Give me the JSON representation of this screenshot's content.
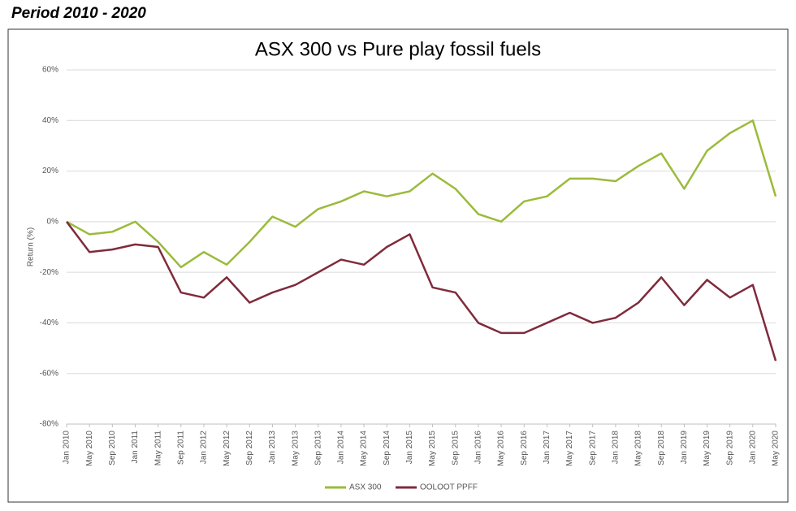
{
  "header": {
    "title": "Period 2010 - 2020"
  },
  "chart_data": {
    "type": "line",
    "title": "ASX 300 vs Pure play fossil fuels",
    "y_label": "Return (%)",
    "categories": [
      "Jan 2010",
      "May 2010",
      "Sep 2010",
      "Jan 2011",
      "May 2011",
      "Sep 2011",
      "Jan 2012",
      "May 2012",
      "Sep 2012",
      "Jan 2013",
      "May 2013",
      "Sep 2013",
      "Jan 2014",
      "May 2014",
      "Sep 2014",
      "Jan 2015",
      "May 2015",
      "Sep 2015",
      "Jan 2016",
      "May 2016",
      "Sep 2016",
      "Jan 2017",
      "May 2017",
      "Sep 2017",
      "Jan 2018",
      "May 2018",
      "Sep 2018",
      "Jan 2019",
      "May 2019",
      "Sep 2019",
      "Jan 2020",
      "May 2020"
    ],
    "series": [
      {
        "name": "ASX 300",
        "color": "#9bbb3b",
        "values": [
          0,
          -5,
          -4,
          0,
          -8,
          -18,
          -12,
          -17,
          -8,
          2,
          -2,
          5,
          8,
          12,
          10,
          12,
          19,
          13,
          3,
          0,
          8,
          10,
          17,
          17,
          16,
          22,
          27,
          13,
          28,
          35,
          40,
          10
        ]
      },
      {
        "name": "OOLOOT PPFF",
        "color": "#7f2b3c",
        "values": [
          0,
          -12,
          -11,
          -9,
          -10,
          -28,
          -30,
          -22,
          -32,
          -28,
          -25,
          -20,
          -15,
          -17,
          -10,
          -5,
          -26,
          -28,
          -40,
          -44,
          -44,
          -40,
          -36,
          -40,
          -38,
          -32,
          -22,
          -33,
          -23,
          -30,
          -25,
          -55
        ]
      }
    ],
    "ylim": [
      -80,
      60
    ],
    "yticks": [
      {
        "value": -80,
        "label": "-80%"
      },
      {
        "value": -60,
        "label": "-60%"
      },
      {
        "value": -40,
        "label": "-40%"
      },
      {
        "value": -20,
        "label": "-20%"
      },
      {
        "value": 0,
        "label": "0%"
      },
      {
        "value": 20,
        "label": "20%"
      },
      {
        "value": 40,
        "label": "40%"
      },
      {
        "value": 60,
        "label": "60%"
      }
    ],
    "grid": true,
    "legend": "bottom"
  }
}
